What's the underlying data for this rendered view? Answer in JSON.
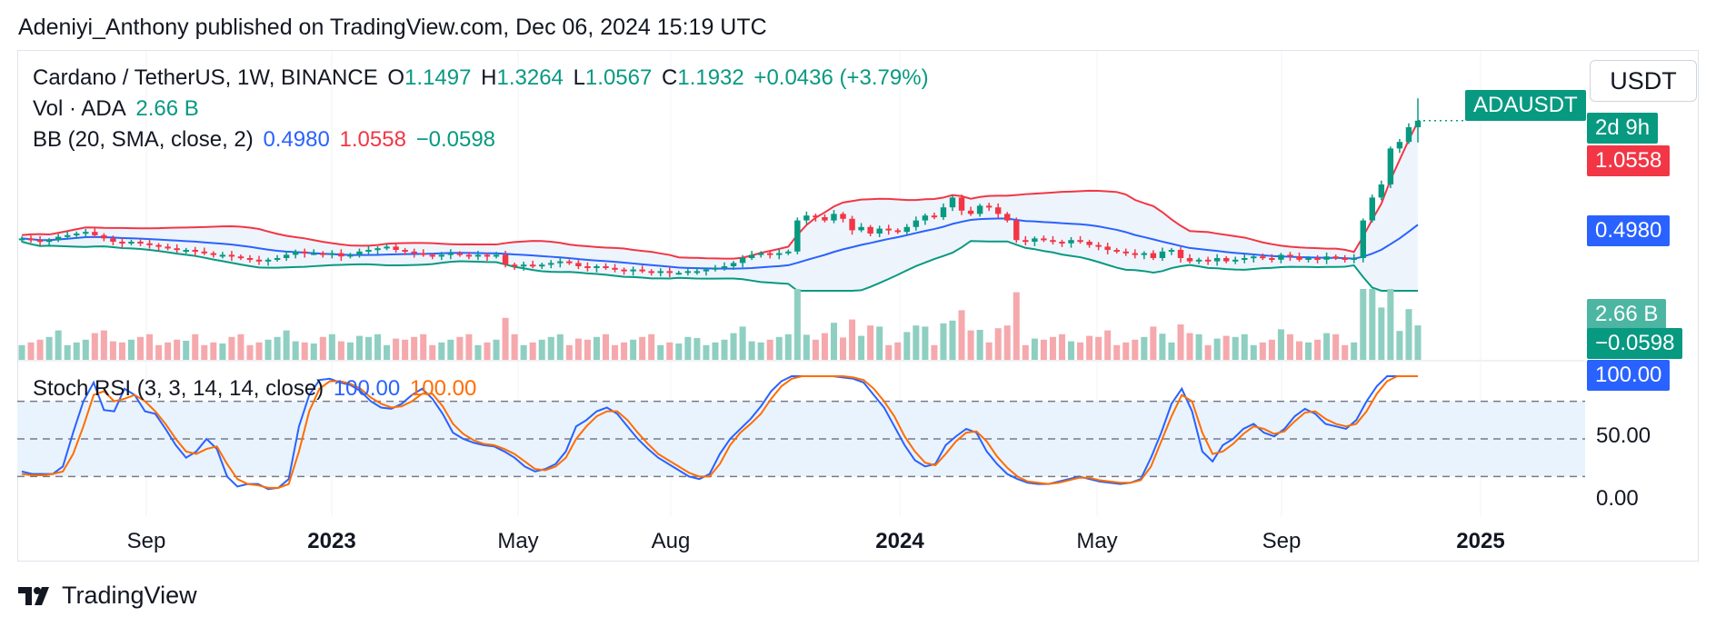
{
  "publisher_line": "Adeniyi_Anthony published on TradingView.com, Dec 06, 2024 15:19 UTC",
  "currency_button": "USDT",
  "footer_brand": "TradingView",
  "footer_icon": "tradingview-logo-icon",
  "legend": {
    "symbol": "Cardano / TetherUS, 1W, BINANCE",
    "open_label": "O",
    "open": "1.1497",
    "high_label": "H",
    "high": "1.3264",
    "low_label": "L",
    "low": "1.0567",
    "close_label": "C",
    "close": "1.1932",
    "change": "+0.0436 (+3.79%)",
    "vol_label": "Vol · ADA",
    "vol": "2.66 B",
    "bb_label": "BB (20, SMA, close, 2)",
    "bb_basis": "0.4980",
    "bb_upper": "1.0558",
    "bb_lower": "−0.0598",
    "stoch_label": "Stoch RSI (3, 3, 14, 14, close)",
    "stoch_k": "100.00",
    "stoch_d": "100.00"
  },
  "price_scale": {
    "symbol_tag": "ADAUSDT",
    "countdown": "2d 9h",
    "bb_upper_tag": "1.0558",
    "bb_basis_tag": "0.4980",
    "volume_tag": "2.66 B",
    "bb_lower_tag": "−0.0598"
  },
  "stoch_scale": {
    "value_tag": "100.00",
    "ticks": [
      "50.00",
      "0.00"
    ]
  },
  "x_axis": {
    "labels": [
      {
        "text": "Sep",
        "bold": false
      },
      {
        "text": "2023",
        "bold": true
      },
      {
        "text": "May",
        "bold": false
      },
      {
        "text": "Aug",
        "bold": false
      },
      {
        "text": "2024",
        "bold": true
      },
      {
        "text": "May",
        "bold": false
      },
      {
        "text": "Sep",
        "bold": false
      },
      {
        "text": "2025",
        "bold": true
      }
    ]
  },
  "colors": {
    "up": "#089981",
    "down": "#f23645",
    "bb_basis": "#2962ff",
    "bb_upper": "#f23645",
    "bb_lower": "#089981",
    "bb_fill": "#eef4fc",
    "stoch_k": "#2962ff",
    "stoch_d": "#ff6d00",
    "stoch_band": "#e9f3fd",
    "vol_up": "#8fcfc2",
    "vol_down": "#f5a9ad"
  },
  "chart_data": [
    {
      "type": "candlestick",
      "title": "Cardano / TetherUS, 1W, BINANCE",
      "ylim": [
        0.15,
        1.4
      ],
      "last": {
        "open": 1.1497,
        "high": 1.3264,
        "low": 1.0567,
        "close": 1.1932,
        "change": 0.0436,
        "change_pct": 3.79
      },
      "indicators": {
        "bb": {
          "basis": 0.498,
          "upper": 1.0558,
          "lower": -0.0598
        },
        "volume_last": "2.66 B"
      },
      "x_labels": [
        "Sep",
        "2023",
        "May",
        "Aug",
        "2024",
        "May",
        "Sep",
        "2025"
      ],
      "closes": [
        0.47,
        0.46,
        0.45,
        0.46,
        0.48,
        0.49,
        0.5,
        0.51,
        0.49,
        0.47,
        0.45,
        0.44,
        0.45,
        0.44,
        0.43,
        0.42,
        0.41,
        0.4,
        0.4,
        0.39,
        0.38,
        0.37,
        0.37,
        0.36,
        0.35,
        0.34,
        0.33,
        0.34,
        0.35,
        0.37,
        0.39,
        0.38,
        0.38,
        0.37,
        0.38,
        0.36,
        0.37,
        0.39,
        0.4,
        0.41,
        0.42,
        0.4,
        0.39,
        0.38,
        0.37,
        0.36,
        0.37,
        0.38,
        0.37,
        0.36,
        0.37,
        0.36,
        0.37,
        0.31,
        0.3,
        0.31,
        0.3,
        0.31,
        0.32,
        0.33,
        0.32,
        0.3,
        0.29,
        0.3,
        0.29,
        0.28,
        0.27,
        0.28,
        0.27,
        0.26,
        0.27,
        0.26,
        0.26,
        0.27,
        0.27,
        0.28,
        0.29,
        0.3,
        0.32,
        0.35,
        0.37,
        0.38,
        0.37,
        0.38,
        0.39,
        0.58,
        0.61,
        0.6,
        0.58,
        0.62,
        0.59,
        0.52,
        0.54,
        0.5,
        0.53,
        0.52,
        0.51,
        0.54,
        0.58,
        0.61,
        0.6,
        0.66,
        0.72,
        0.64,
        0.62,
        0.67,
        0.66,
        0.62,
        0.58,
        0.46,
        0.45,
        0.47,
        0.46,
        0.45,
        0.44,
        0.46,
        0.45,
        0.43,
        0.42,
        0.4,
        0.39,
        0.38,
        0.37,
        0.38,
        0.35,
        0.39,
        0.4,
        0.35,
        0.33,
        0.34,
        0.33,
        0.35,
        0.33,
        0.34,
        0.35,
        0.36,
        0.35,
        0.34,
        0.37,
        0.36,
        0.34,
        0.35,
        0.34,
        0.36,
        0.35,
        0.34,
        0.35,
        0.58,
        0.72,
        0.8,
        1.02,
        1.06,
        1.15,
        1.19
      ]
    },
    {
      "type": "line",
      "title": "Stoch RSI (3, 3, 14, 14, close)",
      "ylim": [
        0,
        100
      ],
      "y_ticks": [
        0,
        50,
        100
      ],
      "bands": [
        20,
        50,
        80
      ],
      "series": [
        {
          "name": "K",
          "values": [
            24,
            22,
            22,
            22,
            28,
            55,
            80,
            95,
            73,
            72,
            90,
            85,
            72,
            70,
            58,
            45,
            35,
            40,
            50,
            42,
            20,
            12,
            14,
            14,
            10,
            11,
            18,
            60,
            85,
            97,
            98,
            95,
            93,
            88,
            80,
            75,
            74,
            78,
            85,
            90,
            82,
            70,
            55,
            50,
            47,
            45,
            44,
            40,
            35,
            28,
            24,
            26,
            30,
            40,
            60,
            65,
            72,
            75,
            70,
            60,
            50,
            42,
            35,
            30,
            25,
            20,
            18,
            22,
            38,
            50,
            58,
            66,
            76,
            88,
            96,
            100,
            100,
            100,
            100,
            100,
            99,
            98,
            95,
            85,
            75,
            60,
            45,
            33,
            28,
            30,
            45,
            52,
            58,
            55,
            40,
            30,
            22,
            18,
            15,
            14,
            14,
            16,
            18,
            20,
            18,
            16,
            15,
            14,
            15,
            18,
            35,
            55,
            78,
            90,
            72,
            40,
            32,
            45,
            50,
            58,
            62,
            55,
            52,
            58,
            68,
            74,
            70,
            62,
            60,
            58,
            65,
            80,
            92,
            100,
            100,
            100,
            100
          ]
        },
        {
          "name": "D",
          "values": [
            22,
            21,
            21,
            22,
            24,
            38,
            60,
            85,
            88,
            80,
            82,
            85,
            80,
            72,
            62,
            50,
            40,
            38,
            42,
            44,
            30,
            18,
            14,
            13,
            11,
            11,
            14,
            40,
            72,
            90,
            96,
            96,
            94,
            90,
            83,
            78,
            75,
            76,
            80,
            86,
            86,
            76,
            62,
            54,
            49,
            46,
            45,
            42,
            38,
            32,
            26,
            25,
            28,
            35,
            50,
            60,
            68,
            72,
            72,
            65,
            55,
            46,
            38,
            33,
            28,
            23,
            20,
            20,
            30,
            45,
            55,
            62,
            70,
            82,
            92,
            98,
            100,
            100,
            100,
            100,
            100,
            99,
            97,
            90,
            80,
            68,
            52,
            40,
            31,
            29,
            38,
            48,
            55,
            56,
            48,
            36,
            27,
            20,
            16,
            15,
            14,
            15,
            17,
            19,
            19,
            17,
            16,
            15,
            15,
            17,
            28,
            48,
            68,
            85,
            80,
            55,
            38,
            40,
            46,
            54,
            60,
            58,
            54,
            56,
            64,
            71,
            72,
            66,
            62,
            60,
            62,
            72,
            86,
            96,
            100,
            100,
            100
          ]
        }
      ]
    }
  ]
}
